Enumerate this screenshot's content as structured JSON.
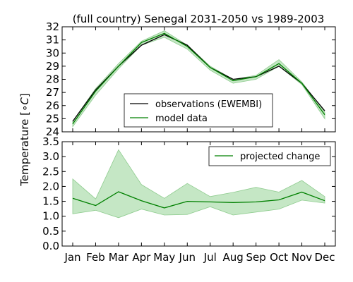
{
  "chart_data": {
    "type": "line",
    "title": "(full country) Senegal 2031-2050 vs 1989-2003",
    "ylabel_main": "Temperature [",
    "ylabel_unit": "∘C",
    "ylabel_close": "]",
    "categories": [
      "Jan",
      "Feb",
      "Mar",
      "Apr",
      "May",
      "Jun",
      "Jul",
      "Aug",
      "Sep",
      "Oct",
      "Nov",
      "Dec"
    ],
    "colors": {
      "observations": "#000000",
      "model": "#008000",
      "band": "#b2dfb2"
    },
    "panels": [
      {
        "name": "top",
        "ylim": [
          24,
          32
        ],
        "yticks": [
          "24",
          "25",
          "26",
          "27",
          "28",
          "29",
          "30",
          "31",
          "32"
        ],
        "legend_position": "lower center",
        "series": [
          {
            "name": "observations (EWEMBI)",
            "kind": "line",
            "values": [
              24.8,
              27.2,
              29.0,
              30.6,
              31.4,
              30.6,
              28.9,
              28.0,
              28.2,
              29.0,
              27.7,
              25.6
            ]
          },
          {
            "name": "model data",
            "kind": "line",
            "values": [
              24.6,
              27.1,
              29.0,
              30.8,
              31.5,
              30.5,
              28.9,
              27.9,
              28.2,
              29.2,
              27.7,
              25.3
            ]
          },
          {
            "name": "",
            "kind": "band",
            "lower": [
              24.4,
              26.8,
              28.8,
              30.6,
              31.2,
              30.3,
              28.7,
              27.7,
              28.0,
              29.0,
              27.6,
              25.0
            ],
            "upper": [
              24.8,
              27.3,
              29.2,
              30.9,
              31.7,
              30.6,
              29.0,
              28.0,
              28.3,
              29.5,
              27.8,
              25.5
            ]
          }
        ]
      },
      {
        "name": "bottom",
        "ylim": [
          0.0,
          3.5
        ],
        "yticks": [
          "0.0",
          "0.5",
          "1.0",
          "1.5",
          "2.0",
          "2.5",
          "3.0",
          "3.5"
        ],
        "legend_position": "upper right",
        "series": [
          {
            "name": "projected change",
            "kind": "line",
            "values": [
              1.6,
              1.36,
              1.82,
              1.52,
              1.28,
              1.5,
              1.48,
              1.46,
              1.48,
              1.55,
              1.81,
              1.52
            ]
          },
          {
            "name": "",
            "kind": "band",
            "lower": [
              1.08,
              1.2,
              0.95,
              1.24,
              1.04,
              1.06,
              1.32,
              1.04,
              1.14,
              1.24,
              1.54,
              1.44
            ],
            "upper": [
              2.25,
              1.58,
              3.23,
              2.06,
              1.6,
              2.1,
              1.66,
              1.8,
              1.97,
              1.81,
              2.2,
              1.66
            ]
          }
        ]
      }
    ]
  }
}
